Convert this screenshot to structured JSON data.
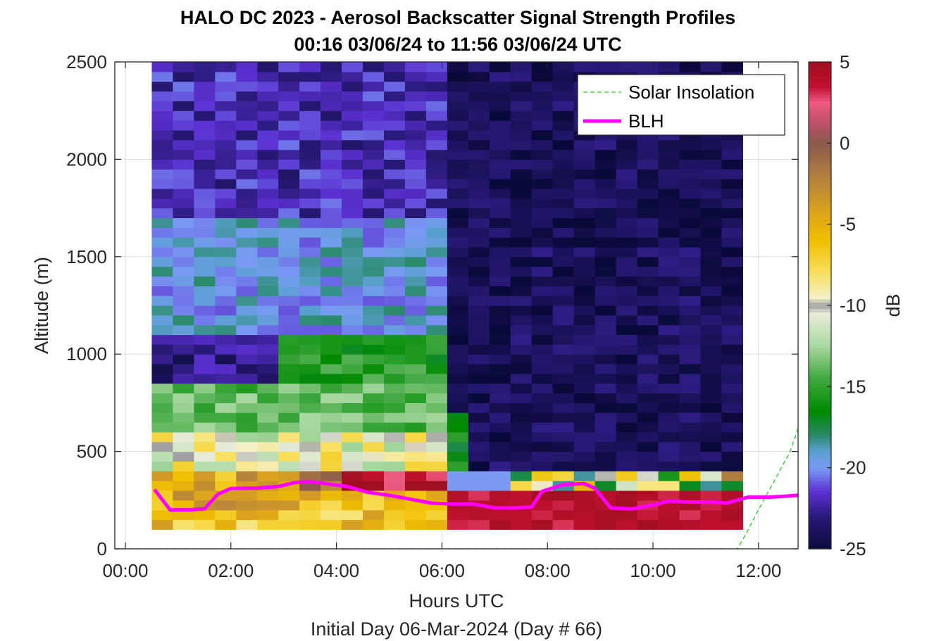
{
  "chart_data": {
    "type": "heatmap",
    "title": "HALO DC 2023 - Aerosol Backscatter Signal Strength Profiles",
    "subtitle": "00:16 03/06/24 to 11:56 03/06/24  UTC",
    "xlabel": "Hours UTC",
    "xlabel2": "Initial Day 06-Mar-2024 (Day # 66)",
    "ylabel": "Altitude (m)",
    "colorbar_label": "dB",
    "xlim": [
      -0.2,
      12.75
    ],
    "ylim": [
      0,
      2500
    ],
    "x_ticks": [
      0,
      2,
      4,
      6,
      8,
      10,
      12
    ],
    "x_tick_labels": [
      "00:00",
      "02:00",
      "04:00",
      "06:00",
      "08:00",
      "10:00",
      "12:00"
    ],
    "y_ticks": [
      0,
      500,
      1000,
      1500,
      2000,
      2500
    ],
    "y_tick_labels": [
      "0",
      "500",
      "1000",
      "1500",
      "2000",
      "2500"
    ],
    "clim": [
      -25,
      5
    ],
    "colorbar_ticks": [
      5,
      0,
      -5,
      -10,
      -15,
      -20,
      -25
    ],
    "colorbar_tick_labels": [
      "5",
      "0",
      "-5",
      "-10",
      "-15",
      "-20",
      "-25"
    ],
    "grid": true,
    "legend_position": "top-right",
    "colormap_stops": [
      {
        "v": -25,
        "c": "#0a0a3a"
      },
      {
        "v": -23,
        "c": "#2a1a7a"
      },
      {
        "v": -21.5,
        "c": "#5a30d0"
      },
      {
        "v": -20,
        "c": "#7a9af5"
      },
      {
        "v": -19,
        "c": "#5aa0d0"
      },
      {
        "v": -18,
        "c": "#2a8a6a"
      },
      {
        "v": -16.5,
        "c": "#008a00"
      },
      {
        "v": -14.5,
        "c": "#40a840"
      },
      {
        "v": -12.5,
        "c": "#a8d8a0"
      },
      {
        "v": -10.5,
        "c": "#e8ecd8"
      },
      {
        "v": -10,
        "c": "#a0a0a0"
      },
      {
        "v": -9.5,
        "c": "#f4f0c8"
      },
      {
        "v": -8,
        "c": "#f8e060"
      },
      {
        "v": -6,
        "c": "#f0c000"
      },
      {
        "v": -4,
        "c": "#d8a020"
      },
      {
        "v": -2,
        "c": "#b08040"
      },
      {
        "v": 0,
        "c": "#8a5a4a"
      },
      {
        "v": 1.5,
        "c": "#c85070"
      },
      {
        "v": 2.5,
        "c": "#f05a80"
      },
      {
        "v": 3.5,
        "c": "#c01030"
      },
      {
        "v": 5,
        "c": "#a01020"
      }
    ],
    "heatmap": {
      "time_start": 0.5,
      "time_step": 0.4,
      "alt_start": 100,
      "alt_step": 50,
      "columns": 28,
      "gap_start_col": 14,
      "description_of_values": "dB values generated per time/altitude cell"
    },
    "series": [
      {
        "name": "Solar Insolation",
        "style": "dashed",
        "color": "#22cc22",
        "x": [
          -0.2,
          11.6,
          11.8,
          12.0,
          12.2,
          12.4,
          12.6,
          12.75
        ],
        "y": [
          0,
          0,
          95,
          200,
          300,
          400,
          500,
          620
        ]
      },
      {
        "name": "BLH",
        "style": "solid",
        "color": "#ff00ff",
        "x": [
          0.55,
          0.85,
          1.2,
          1.5,
          1.75,
          2.0,
          2.5,
          2.9,
          3.2,
          3.5,
          3.8,
          4.2,
          4.6,
          5.0,
          5.4,
          5.8,
          6.2,
          6.6,
          7.0,
          7.4,
          7.7,
          7.9,
          8.3,
          8.7,
          8.9,
          9.2,
          9.6,
          10.0,
          10.3,
          10.7,
          11.1,
          11.4,
          11.8,
          12.2,
          12.5,
          12.75
        ],
        "y": [
          305,
          200,
          200,
          205,
          280,
          310,
          312,
          320,
          340,
          345,
          335,
          320,
          290,
          275,
          255,
          235,
          230,
          230,
          210,
          210,
          215,
          295,
          330,
          335,
          310,
          210,
          205,
          225,
          245,
          240,
          240,
          235,
          265,
          265,
          270,
          275
        ]
      }
    ]
  },
  "axes_color": "#262626",
  "grid_color": "#dcdcdc"
}
